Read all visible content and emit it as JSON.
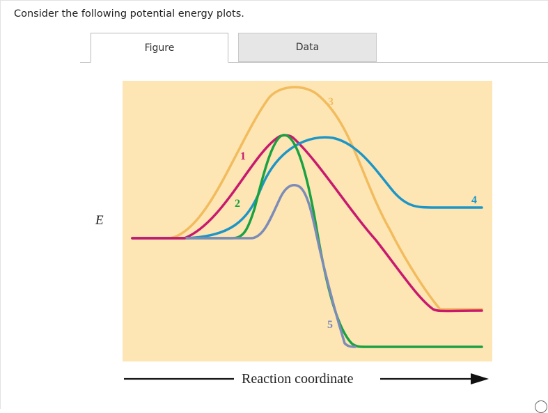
{
  "question": {
    "text": "Consider the following potential energy plots."
  },
  "tabs": [
    {
      "label": "Figure",
      "active": true
    },
    {
      "label": "Data",
      "active": false
    }
  ],
  "colors": {
    "plot_background": "#fde6b3",
    "curve_1": "#c8196f",
    "curve_2": "#1aa142",
    "curve_3": "#f2bb5e",
    "curve_4": "#1d95c7",
    "curve_5": "#7d8bb8"
  },
  "figure": {
    "y_axis_label": "E",
    "x_axis_label": "Reaction coordinate",
    "curve_labels": [
      "1",
      "2",
      "3",
      "4",
      "5"
    ]
  },
  "icons": {
    "corner": "info-circle-icon"
  }
}
